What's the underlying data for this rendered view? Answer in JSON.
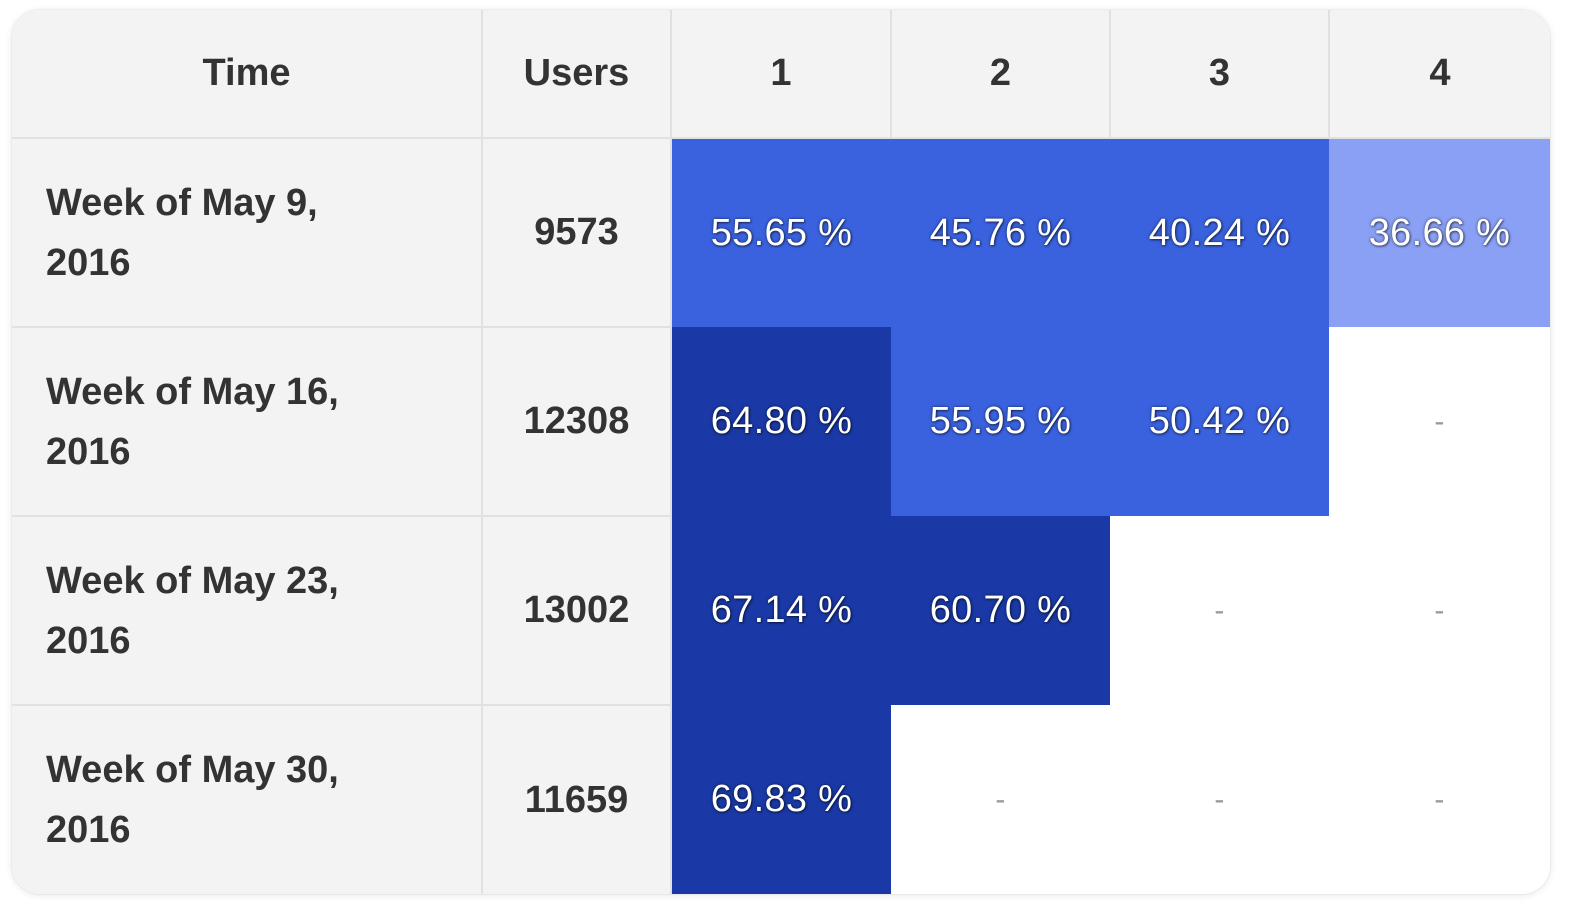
{
  "headers": {
    "time": "Time",
    "users": "Users",
    "periods": [
      "1",
      "2",
      "3",
      "4"
    ]
  },
  "colors": {
    "level_light": "#8aa0f5",
    "level_mid": "#3a62de",
    "level_dark": "#1a39a6"
  },
  "rows": [
    {
      "time_line1": "Week of May 9,",
      "time_line2": "2016",
      "users": "9573",
      "cells": [
        {
          "text": "55.65 %",
          "level": "mid"
        },
        {
          "text": "45.76 %",
          "level": "mid"
        },
        {
          "text": "40.24 %",
          "level": "mid"
        },
        {
          "text": "36.66 %",
          "level": "light"
        }
      ]
    },
    {
      "time_line1": "Week of May 16,",
      "time_line2": "2016",
      "users": "12308",
      "cells": [
        {
          "text": "64.80 %",
          "level": "dark"
        },
        {
          "text": "55.95 %",
          "level": "mid"
        },
        {
          "text": "50.42 %",
          "level": "mid"
        },
        {
          "text": "-",
          "level": "empty"
        }
      ]
    },
    {
      "time_line1": "Week of May 23,",
      "time_line2": "2016",
      "users": "13002",
      "cells": [
        {
          "text": "67.14 %",
          "level": "dark"
        },
        {
          "text": "60.70 %",
          "level": "dark"
        },
        {
          "text": "-",
          "level": "empty"
        },
        {
          "text": "-",
          "level": "empty"
        }
      ]
    },
    {
      "time_line1": "Week of May 30,",
      "time_line2": "2016",
      "users": "11659",
      "cells": [
        {
          "text": "69.83 %",
          "level": "dark"
        },
        {
          "text": "-",
          "level": "empty"
        },
        {
          "text": "-",
          "level": "empty"
        },
        {
          "text": "-",
          "level": "empty"
        }
      ]
    }
  ]
}
